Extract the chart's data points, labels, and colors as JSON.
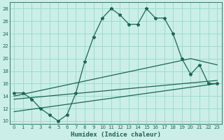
{
  "xlabel": "Humidex (Indice chaleur)",
  "bg_color": "#cceee8",
  "grid_color": "#99ddcc",
  "line_color": "#1a6655",
  "xlim": [
    -0.5,
    23.5
  ],
  "ylim": [
    9.5,
    29
  ],
  "xticks": [
    0,
    1,
    2,
    3,
    4,
    5,
    6,
    7,
    8,
    9,
    10,
    11,
    12,
    13,
    14,
    15,
    16,
    17,
    18,
    19,
    20,
    21,
    22,
    23
  ],
  "yticks": [
    10,
    12,
    14,
    16,
    18,
    20,
    22,
    24,
    26,
    28
  ],
  "main_x": [
    0,
    1,
    2,
    3,
    4,
    5,
    6,
    7,
    8,
    9,
    10,
    11,
    12,
    13,
    14,
    15,
    16,
    17,
    18,
    19,
    20,
    21,
    22,
    23
  ],
  "main_y": [
    14.5,
    14.5,
    13.5,
    12.0,
    11.0,
    10.0,
    11.0,
    14.5,
    19.5,
    23.5,
    26.5,
    28.0,
    27.0,
    25.5,
    25.5,
    28.0,
    26.5,
    26.5,
    24.0,
    20.0,
    17.5,
    19.0,
    16.0,
    16.0
  ],
  "line2_x": [
    0,
    20,
    23
  ],
  "line2_y": [
    14.0,
    20.0,
    19.0
  ],
  "line3_x": [
    0,
    23
  ],
  "line3_y": [
    13.5,
    16.5
  ],
  "line4_x": [
    0,
    23
  ],
  "line4_y": [
    11.5,
    16.0
  ],
  "xlabel_fontsize": 6.5,
  "tick_fontsize": 5.0
}
